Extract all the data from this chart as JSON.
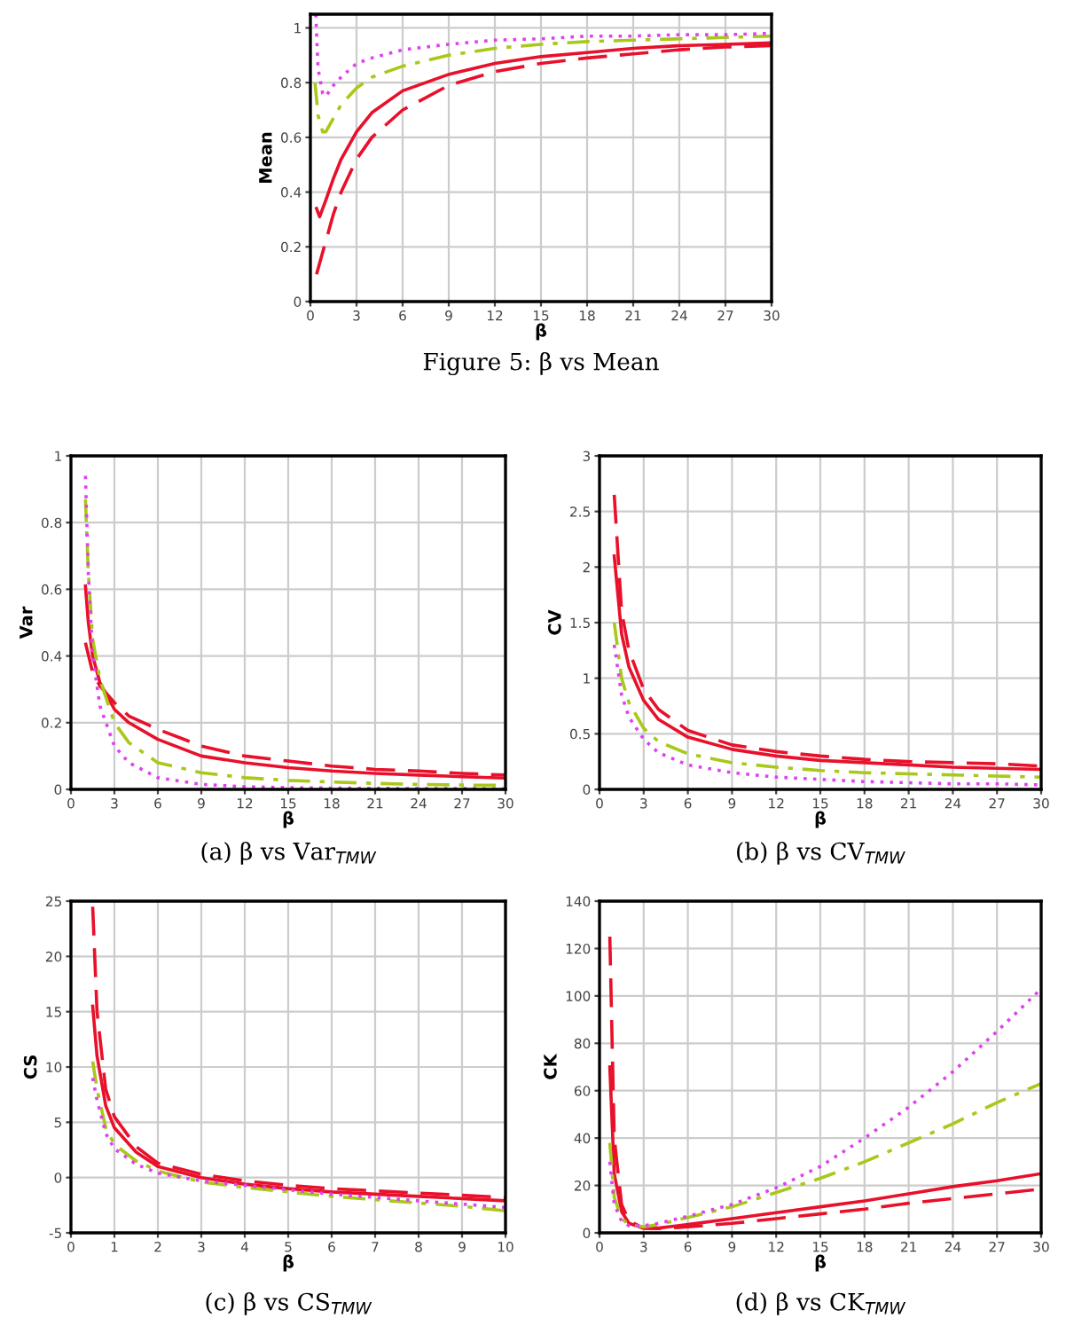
{
  "chart_data": [
    {
      "type": "line",
      "xlabel": "β",
      "ylabel": "Mean",
      "xlim": [
        0,
        30
      ],
      "ylim": [
        0,
        1.05
      ],
      "xticks": [
        0,
        3,
        6,
        9,
        12,
        15,
        18,
        21,
        24,
        27,
        30
      ],
      "yticks": [
        0,
        0.2,
        0.4,
        0.6,
        0.8,
        1
      ],
      "grid": true,
      "annotations": [
        "Figure 5: β vs Mean"
      ],
      "series": [
        {
          "color": "#e8102a",
          "line_style": "solid",
          "x": [
            0.4,
            0.6,
            1,
            1.5,
            2,
            3,
            4,
            6,
            9,
            12,
            15,
            18,
            21,
            24,
            27,
            30
          ],
          "values": [
            0.34,
            0.31,
            0.37,
            0.45,
            0.52,
            0.62,
            0.69,
            0.77,
            0.83,
            0.87,
            0.895,
            0.91,
            0.925,
            0.935,
            0.94,
            0.945
          ]
        },
        {
          "color": "#e8102a",
          "line_style": "dashed",
          "x": [
            0.4,
            1,
            1.5,
            2,
            3,
            4,
            6,
            9,
            12,
            15,
            18,
            21,
            24,
            27,
            30
          ],
          "values": [
            0.1,
            0.22,
            0.32,
            0.4,
            0.52,
            0.6,
            0.7,
            0.79,
            0.84,
            0.87,
            0.89,
            0.905,
            0.92,
            0.93,
            0.935
          ]
        },
        {
          "color": "#a8c81a",
          "line_style": "dashdot",
          "x": [
            0.3,
            0.5,
            0.8,
            1,
            1.5,
            2,
            3,
            4,
            6,
            9,
            12,
            15,
            18,
            21,
            24,
            27,
            30
          ],
          "values": [
            0.8,
            0.68,
            0.62,
            0.62,
            0.67,
            0.72,
            0.78,
            0.82,
            0.86,
            0.9,
            0.925,
            0.94,
            0.95,
            0.955,
            0.96,
            0.965,
            0.97
          ]
        },
        {
          "color": "#e040f0",
          "line_style": "dotted",
          "x": [
            0.35,
            0.5,
            0.8,
            1,
            1.5,
            2,
            3,
            4,
            6,
            9,
            12,
            15,
            18,
            21,
            24,
            27,
            30
          ],
          "values": [
            1.05,
            0.85,
            0.76,
            0.75,
            0.79,
            0.82,
            0.87,
            0.89,
            0.92,
            0.94,
            0.955,
            0.96,
            0.97,
            0.97,
            0.975,
            0.975,
            0.98
          ]
        }
      ]
    },
    {
      "type": "line",
      "xlabel": "β",
      "ylabel": "Var",
      "xlim": [
        0,
        30
      ],
      "ylim": [
        0,
        1
      ],
      "xticks": [
        0,
        3,
        6,
        9,
        12,
        15,
        18,
        21,
        24,
        27,
        30
      ],
      "yticks": [
        0,
        0.2,
        0.4,
        0.6,
        0.8,
        1
      ],
      "grid": true,
      "annotations": [
        "(a) β vs Var$_{TMW}$"
      ],
      "series": [
        {
          "color": "#e8102a",
          "line_style": "solid",
          "x": [
            1,
            1.2,
            1.5,
            2,
            3,
            4,
            6,
            9,
            12,
            15,
            18,
            21,
            24,
            27,
            30
          ],
          "values": [
            0.61,
            0.5,
            0.4,
            0.32,
            0.24,
            0.2,
            0.15,
            0.1,
            0.08,
            0.065,
            0.055,
            0.048,
            0.043,
            0.038,
            0.034
          ]
        },
        {
          "color": "#e8102a",
          "line_style": "dashed",
          "x": [
            1,
            1.5,
            2,
            3,
            4,
            6,
            9,
            12,
            15,
            18,
            21,
            24,
            27,
            30
          ],
          "values": [
            0.44,
            0.35,
            0.31,
            0.26,
            0.22,
            0.18,
            0.13,
            0.1,
            0.085,
            0.07,
            0.06,
            0.055,
            0.048,
            0.043
          ]
        },
        {
          "color": "#a8c81a",
          "line_style": "dashdot",
          "x": [
            1,
            1.2,
            1.5,
            2,
            3,
            4,
            6,
            9,
            12,
            15,
            18,
            21,
            24,
            27,
            30
          ],
          "values": [
            0.87,
            0.65,
            0.45,
            0.33,
            0.2,
            0.14,
            0.08,
            0.05,
            0.035,
            0.027,
            0.022,
            0.018,
            0.015,
            0.013,
            0.012
          ]
        },
        {
          "color": "#e040f0",
          "line_style": "dotted",
          "x": [
            1,
            1.2,
            1.5,
            2,
            3,
            4,
            6,
            9,
            12,
            15,
            21,
            30
          ],
          "values": [
            0.94,
            0.65,
            0.4,
            0.25,
            0.13,
            0.08,
            0.035,
            0.015,
            0.008,
            0.005,
            0.003,
            0.002
          ]
        }
      ]
    },
    {
      "type": "line",
      "xlabel": "β",
      "ylabel": "CV",
      "xlim": [
        0,
        30
      ],
      "ylim": [
        0,
        3
      ],
      "xticks": [
        0,
        3,
        6,
        9,
        12,
        15,
        18,
        21,
        24,
        27,
        30
      ],
      "yticks": [
        0,
        0.5,
        1,
        1.5,
        2,
        2.5,
        3
      ],
      "grid": true,
      "annotations": [
        "(b) β vs CV$_{TMW}$"
      ],
      "series": [
        {
          "color": "#e8102a",
          "line_style": "solid",
          "x": [
            1,
            1.5,
            2,
            3,
            4,
            6,
            9,
            12,
            15,
            18,
            21,
            24,
            27,
            30
          ],
          "values": [
            2.1,
            1.4,
            1.1,
            0.8,
            0.63,
            0.47,
            0.36,
            0.3,
            0.26,
            0.24,
            0.22,
            0.2,
            0.19,
            0.18
          ]
        },
        {
          "color": "#e8102a",
          "line_style": "dashed",
          "x": [
            1,
            1.5,
            2,
            3,
            4,
            6,
            9,
            12,
            15,
            18,
            21,
            24,
            27,
            30
          ],
          "values": [
            2.65,
            1.6,
            1.25,
            0.9,
            0.72,
            0.53,
            0.4,
            0.34,
            0.3,
            0.27,
            0.25,
            0.24,
            0.23,
            0.21
          ]
        },
        {
          "color": "#a8c81a",
          "line_style": "dashdot",
          "x": [
            1,
            1.5,
            2,
            3,
            4,
            6,
            9,
            12,
            15,
            18,
            21,
            24,
            27,
            30
          ],
          "values": [
            1.5,
            1.0,
            0.78,
            0.55,
            0.43,
            0.32,
            0.24,
            0.2,
            0.17,
            0.15,
            0.14,
            0.13,
            0.12,
            0.11
          ]
        },
        {
          "color": "#e040f0",
          "line_style": "dotted",
          "x": [
            1,
            1.5,
            2,
            3,
            4,
            6,
            9,
            12,
            15,
            18,
            21,
            24,
            27,
            30
          ],
          "values": [
            1.3,
            0.85,
            0.65,
            0.45,
            0.33,
            0.22,
            0.15,
            0.11,
            0.09,
            0.07,
            0.06,
            0.05,
            0.05,
            0.04
          ]
        }
      ]
    },
    {
      "type": "line",
      "xlabel": "β",
      "ylabel": "CS",
      "xlim": [
        0,
        10
      ],
      "ylim": [
        -5,
        25
      ],
      "xticks": [
        0,
        1,
        2,
        3,
        4,
        5,
        6,
        7,
        8,
        9,
        10
      ],
      "yticks": [
        -5,
        0,
        5,
        10,
        15,
        20,
        25
      ],
      "grid": true,
      "annotations": [
        "(c) β vs CS$_{TMW}$"
      ],
      "series": [
        {
          "color": "#e8102a",
          "line_style": "solid",
          "x": [
            0.5,
            0.6,
            0.8,
            1,
            1.5,
            2,
            3,
            4,
            5,
            6,
            7,
            8,
            9,
            10
          ],
          "values": [
            15.5,
            11,
            6.5,
            4.5,
            2.3,
            1.0,
            0,
            -0.6,
            -1,
            -1.3,
            -1.5,
            -1.7,
            -1.9,
            -2.1
          ]
        },
        {
          "color": "#e8102a",
          "line_style": "dashed",
          "x": [
            0.5,
            0.6,
            0.8,
            1,
            1.5,
            2,
            3,
            4,
            5,
            6,
            7,
            8,
            9,
            10
          ],
          "values": [
            24.5,
            15,
            8,
            5.5,
            2.8,
            1.3,
            0.3,
            -0.3,
            -0.7,
            -1,
            -1.2,
            -1.4,
            -1.6,
            -1.8
          ]
        },
        {
          "color": "#a8c81a",
          "line_style": "dashdot",
          "x": [
            0.5,
            0.6,
            0.8,
            1,
            1.5,
            2,
            3,
            4,
            5,
            6,
            7,
            8,
            9,
            10
          ],
          "values": [
            10.5,
            8,
            4.5,
            3,
            1.5,
            0.6,
            -0.4,
            -0.9,
            -1.3,
            -1.7,
            -2,
            -2.3,
            -2.6,
            -3
          ]
        },
        {
          "color": "#e040f0",
          "line_style": "dotted",
          "x": [
            0.5,
            0.6,
            0.8,
            1,
            1.5,
            2,
            3,
            4,
            5,
            6,
            7,
            8,
            9,
            10
          ],
          "values": [
            9,
            7,
            4,
            2.6,
            1.2,
            0.4,
            -0.3,
            -0.7,
            -1.1,
            -1.5,
            -1.8,
            -2.1,
            -2.4,
            -2.7
          ]
        }
      ]
    },
    {
      "type": "line",
      "xlabel": "β",
      "ylabel": "CK",
      "xlim": [
        0,
        30
      ],
      "ylim": [
        0,
        140
      ],
      "xticks": [
        0,
        3,
        6,
        9,
        12,
        15,
        18,
        21,
        24,
        27,
        30
      ],
      "yticks": [
        0,
        20,
        40,
        60,
        80,
        100,
        120,
        140
      ],
      "grid": true,
      "annotations": [
        "(d) β vs CK$_{TMW}$"
      ],
      "series": [
        {
          "color": "#e8102a",
          "line_style": "solid",
          "x": [
            0.7,
            1,
            1.5,
            2,
            3,
            4,
            6,
            9,
            12,
            15,
            18,
            21,
            24,
            27,
            30
          ],
          "values": [
            70,
            25,
            9,
            4,
            2,
            2,
            3.5,
            6,
            8.5,
            11,
            13.5,
            16.5,
            19.5,
            22,
            25
          ]
        },
        {
          "color": "#e8102a",
          "line_style": "dashed",
          "x": [
            0.7,
            1,
            1.5,
            2,
            3,
            4,
            6,
            9,
            12,
            15,
            18,
            21,
            24,
            27,
            30
          ],
          "values": [
            125,
            40,
            12,
            5,
            2,
            1.8,
            2.5,
            4,
            6,
            8,
            10,
            12.5,
            14.5,
            16.5,
            18.5
          ]
        },
        {
          "color": "#a8c81a",
          "line_style": "dashdot",
          "x": [
            0.7,
            1,
            1.5,
            2,
            3,
            4,
            6,
            9,
            12,
            15,
            18,
            21,
            24,
            27,
            30
          ],
          "values": [
            38,
            15,
            6,
            3.5,
            2.5,
            3.5,
            6.5,
            11,
            17,
            23,
            30,
            38,
            46,
            55,
            63
          ]
        },
        {
          "color": "#e040f0",
          "line_style": "dotted",
          "x": [
            0.7,
            1,
            1.5,
            2,
            3,
            4,
            6,
            9,
            12,
            15,
            18,
            21,
            24,
            27,
            30
          ],
          "values": [
            30,
            12,
            5,
            3,
            3,
            4,
            7,
            12,
            19,
            28,
            40,
            53,
            68,
            85,
            103
          ]
        }
      ]
    }
  ]
}
